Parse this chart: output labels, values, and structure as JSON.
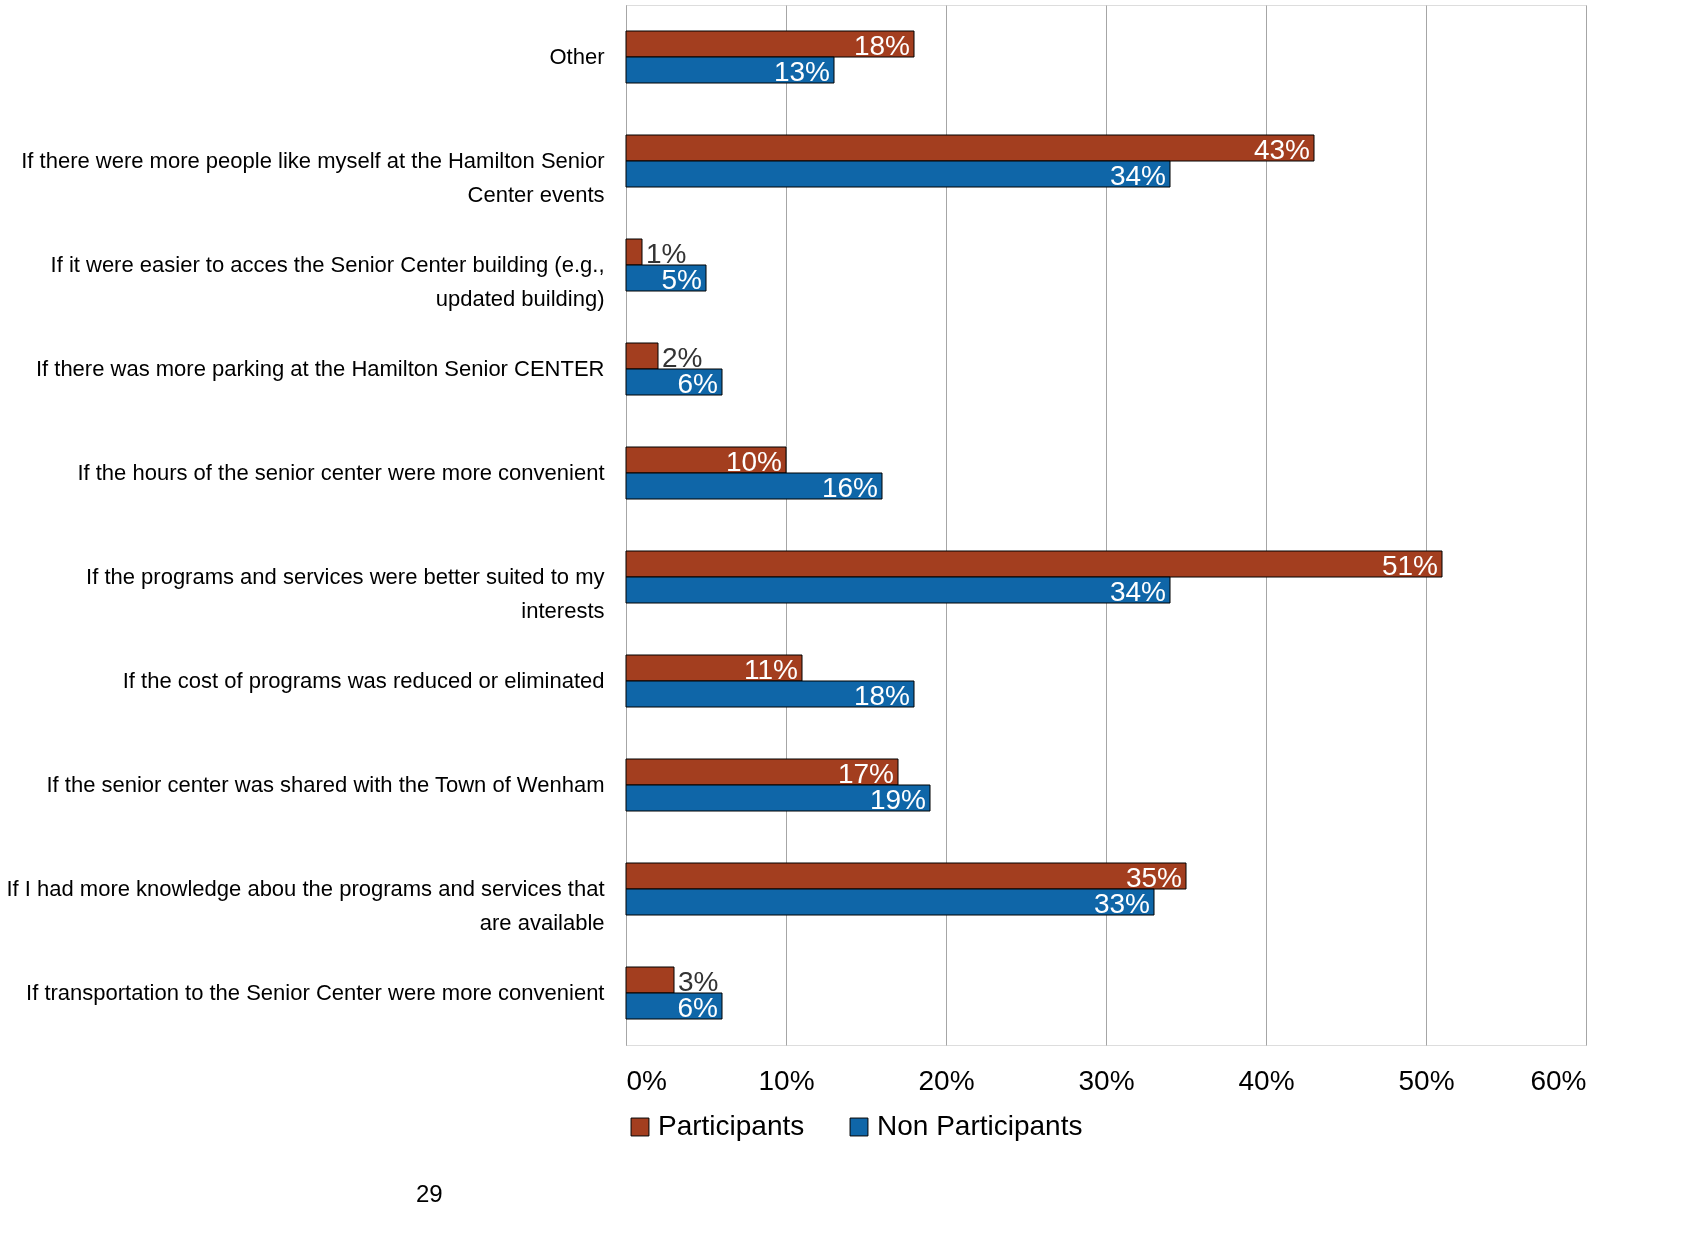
{
  "chart_data": {
    "type": "bar",
    "orientation": "horizontal",
    "categories": [
      "Other",
      "If there were more people like myself at the Hamilton Senior Center events",
      "If it were easier to acces the Senior Center building  (e.g., updated building)",
      "If there was more parking at the Hamilton Senior CENTER",
      "If the hours of the senior center were more convenient",
      "If the programs and services were better suited to my interests",
      "If the cost of programs was reduced or eliminated",
      "If the senior center was shared with the Town of Wenham",
      "If I had more knowledge abou the programs and services that are available",
      "If transportation to the Senior Center were more convenient"
    ],
    "series": [
      {
        "name": "Participants",
        "color": "#a33e1f",
        "values": [
          18,
          43,
          1,
          2,
          10,
          51,
          11,
          17,
          35,
          3
        ],
        "value_labels": [
          "18%",
          "43%",
          "1%",
          "2%",
          "10%",
          "51%",
          "11%",
          "17%",
          "35%",
          "3%"
        ]
      },
      {
        "name": "Non Participants",
        "color": "#0f66a8",
        "values": [
          13,
          34,
          5,
          6,
          16,
          34,
          18,
          19,
          33,
          6
        ],
        "value_labels": [
          "13%",
          "34%",
          "5%",
          "6%",
          "16%",
          "34%",
          "18%",
          "19%",
          "33%",
          "6%"
        ]
      }
    ],
    "xlim": [
      0,
      60
    ],
    "xticks": [
      {
        "value": 0,
        "label": "0%"
      },
      {
        "value": 10,
        "label": "10%"
      },
      {
        "value": 20,
        "label": "20%"
      },
      {
        "value": 30,
        "label": "30%"
      },
      {
        "value": 40,
        "label": "40%"
      },
      {
        "value": 50,
        "label": "50%"
      },
      {
        "value": 60,
        "label": "60%"
      }
    ],
    "grid": "x",
    "legend": "bottom",
    "annotations": [
      "29"
    ]
  }
}
